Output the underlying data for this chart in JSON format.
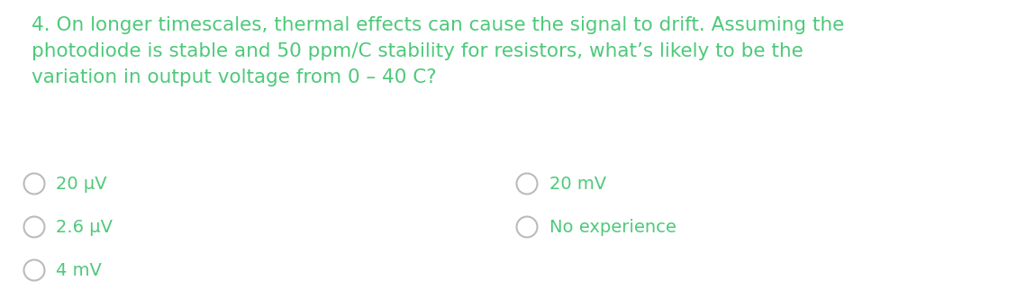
{
  "background_color": "#ffffff",
  "text_color": "#4dc97a",
  "question": "4. On longer timescales, thermal effects can cause the signal to drift. Assuming the\nphotodiode is stable and 50 ppm/C stability for resistors, what’s likely to be the\nvariation in output voltage from 0 – 40 C?",
  "options_left": [
    "20 μV",
    "2.6 μV",
    "4 mV"
  ],
  "options_right": [
    "20 mV",
    "No experience"
  ],
  "question_fontsize": 15.5,
  "option_fontsize": 14,
  "circle_edge_color": "#bbbbbb",
  "figsize": [
    11.29,
    3.42
  ],
  "dpi": 100
}
